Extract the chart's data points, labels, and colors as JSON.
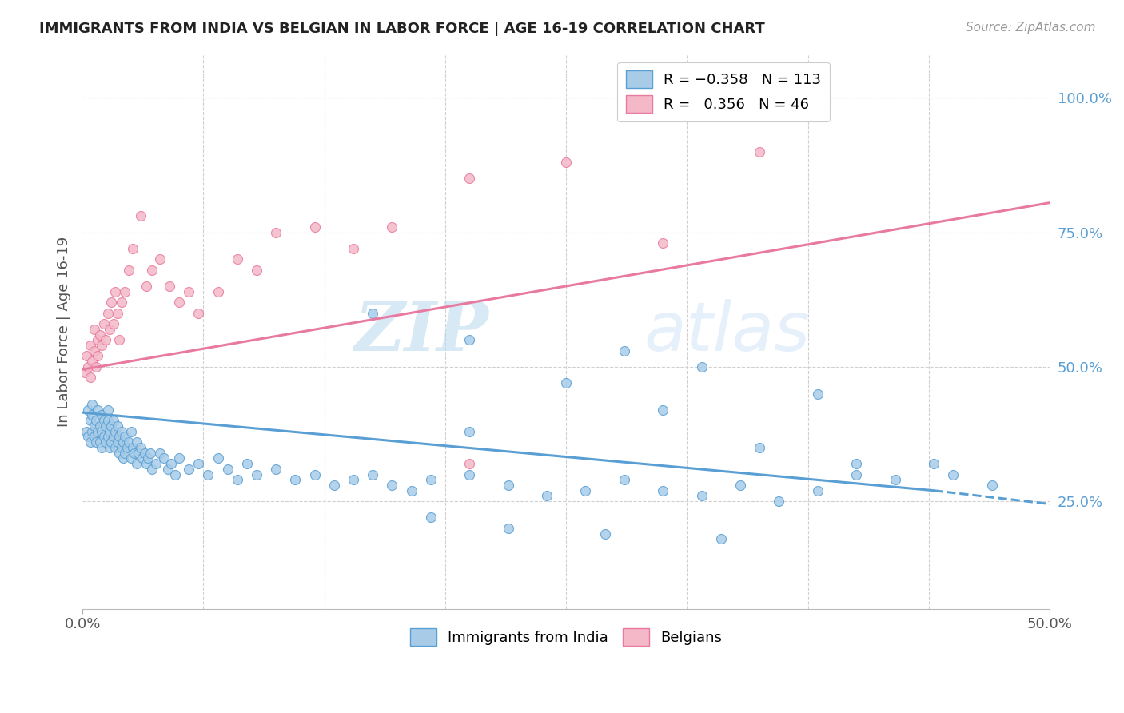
{
  "title": "IMMIGRANTS FROM INDIA VS BELGIAN IN LABOR FORCE | AGE 16-19 CORRELATION CHART",
  "source": "Source: ZipAtlas.com",
  "ylabel": "In Labor Force | Age 16-19",
  "ytick_labels": [
    "25.0%",
    "50.0%",
    "75.0%",
    "100.0%"
  ],
  "ytick_positions": [
    0.25,
    0.5,
    0.75,
    1.0
  ],
  "xlim": [
    0.0,
    0.5
  ],
  "ylim": [
    0.05,
    1.08
  ],
  "blue_color": "#a8cce8",
  "pink_color": "#f4b8c8",
  "blue_edge_color": "#5a9fd4",
  "pink_edge_color": "#e87aa0",
  "blue_line_color": "#5a9fd4",
  "pink_line_color": "#e87aa0",
  "watermark_color": "#cce4f4",
  "grid_color": "#d0d0d0",
  "blue_trend": [
    0.0,
    0.44,
    0.415,
    0.27
  ],
  "blue_trend_dash": [
    0.44,
    0.5,
    0.27,
    0.245
  ],
  "pink_trend": [
    0.0,
    0.5,
    0.495,
    0.805
  ],
  "blue_N": 113,
  "pink_N": 46,
  "blue_x": [
    0.002,
    0.003,
    0.003,
    0.004,
    0.004,
    0.005,
    0.005,
    0.005,
    0.006,
    0.006,
    0.007,
    0.007,
    0.008,
    0.008,
    0.009,
    0.009,
    0.01,
    0.01,
    0.01,
    0.011,
    0.011,
    0.012,
    0.012,
    0.013,
    0.013,
    0.013,
    0.014,
    0.014,
    0.015,
    0.015,
    0.016,
    0.016,
    0.017,
    0.017,
    0.018,
    0.018,
    0.019,
    0.019,
    0.02,
    0.02,
    0.021,
    0.021,
    0.022,
    0.022,
    0.023,
    0.024,
    0.025,
    0.025,
    0.026,
    0.027,
    0.028,
    0.028,
    0.029,
    0.03,
    0.031,
    0.032,
    0.033,
    0.034,
    0.035,
    0.036,
    0.038,
    0.04,
    0.042,
    0.044,
    0.046,
    0.048,
    0.05,
    0.055,
    0.06,
    0.065,
    0.07,
    0.075,
    0.08,
    0.085,
    0.09,
    0.1,
    0.11,
    0.12,
    0.13,
    0.14,
    0.15,
    0.16,
    0.17,
    0.18,
    0.2,
    0.22,
    0.24,
    0.26,
    0.28,
    0.3,
    0.32,
    0.34,
    0.36,
    0.38,
    0.4,
    0.2,
    0.25,
    0.3,
    0.35,
    0.4,
    0.18,
    0.22,
    0.27,
    0.33,
    0.42,
    0.45,
    0.47,
    0.15,
    0.2,
    0.28,
    0.32,
    0.38,
    0.44
  ],
  "blue_y": [
    0.38,
    0.42,
    0.37,
    0.4,
    0.36,
    0.41,
    0.38,
    0.43,
    0.39,
    0.37,
    0.4,
    0.36,
    0.38,
    0.42,
    0.39,
    0.36,
    0.41,
    0.38,
    0.35,
    0.4,
    0.37,
    0.39,
    0.36,
    0.4,
    0.37,
    0.42,
    0.38,
    0.35,
    0.39,
    0.36,
    0.4,
    0.37,
    0.38,
    0.35,
    0.39,
    0.36,
    0.37,
    0.34,
    0.38,
    0.35,
    0.36,
    0.33,
    0.37,
    0.34,
    0.35,
    0.36,
    0.38,
    0.33,
    0.35,
    0.34,
    0.36,
    0.32,
    0.34,
    0.35,
    0.33,
    0.34,
    0.32,
    0.33,
    0.34,
    0.31,
    0.32,
    0.34,
    0.33,
    0.31,
    0.32,
    0.3,
    0.33,
    0.31,
    0.32,
    0.3,
    0.33,
    0.31,
    0.29,
    0.32,
    0.3,
    0.31,
    0.29,
    0.3,
    0.28,
    0.29,
    0.3,
    0.28,
    0.27,
    0.29,
    0.3,
    0.28,
    0.26,
    0.27,
    0.29,
    0.27,
    0.26,
    0.28,
    0.25,
    0.27,
    0.3,
    0.38,
    0.47,
    0.42,
    0.35,
    0.32,
    0.22,
    0.2,
    0.19,
    0.18,
    0.29,
    0.3,
    0.28,
    0.6,
    0.55,
    0.53,
    0.5,
    0.45,
    0.32
  ],
  "pink_x": [
    0.001,
    0.002,
    0.003,
    0.004,
    0.004,
    0.005,
    0.006,
    0.006,
    0.007,
    0.008,
    0.008,
    0.009,
    0.01,
    0.011,
    0.012,
    0.013,
    0.014,
    0.015,
    0.016,
    0.017,
    0.018,
    0.019,
    0.02,
    0.022,
    0.024,
    0.026,
    0.03,
    0.033,
    0.036,
    0.04,
    0.045,
    0.05,
    0.055,
    0.06,
    0.07,
    0.08,
    0.09,
    0.1,
    0.12,
    0.14,
    0.16,
    0.2,
    0.25,
    0.3,
    0.2,
    0.35
  ],
  "pink_y": [
    0.49,
    0.52,
    0.5,
    0.54,
    0.48,
    0.51,
    0.53,
    0.57,
    0.5,
    0.55,
    0.52,
    0.56,
    0.54,
    0.58,
    0.55,
    0.6,
    0.57,
    0.62,
    0.58,
    0.64,
    0.6,
    0.55,
    0.62,
    0.64,
    0.68,
    0.72,
    0.78,
    0.65,
    0.68,
    0.7,
    0.65,
    0.62,
    0.64,
    0.6,
    0.64,
    0.7,
    0.68,
    0.75,
    0.76,
    0.72,
    0.76,
    0.85,
    0.88,
    0.73,
    0.32,
    0.9
  ]
}
